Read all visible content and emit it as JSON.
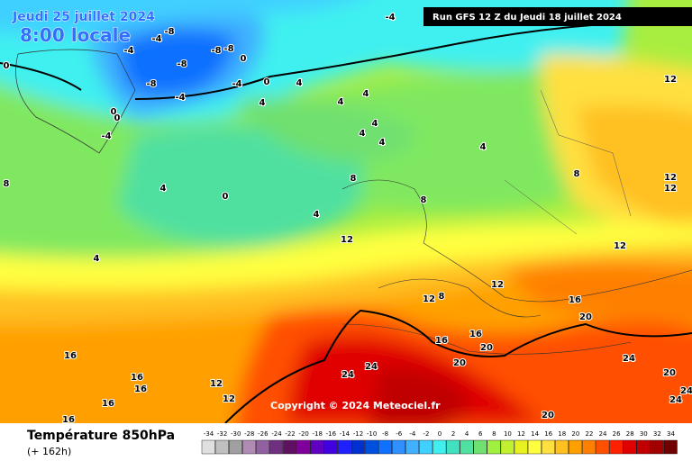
{
  "header": {
    "date": "Jeudi 25 juillet 2024",
    "time": "8:00 locale",
    "run": "Run GFS 12 Z du Jeudi 18 juillet 2024"
  },
  "copyright": "Copyright © 2024 Meteociel.fr",
  "footer": {
    "title": "Température 850hPa",
    "lead": "(+ 162h)"
  },
  "map": {
    "labels": [
      -4,
      -8,
      -4,
      -4,
      -8,
      -8,
      0,
      -8,
      -8,
      -4,
      -4,
      0,
      4,
      4,
      4,
      4,
      0,
      0,
      4,
      4,
      4,
      -4,
      4,
      4,
      0,
      4,
      4,
      8,
      8,
      8,
      8,
      12,
      12,
      12,
      12,
      12,
      12,
      8,
      12,
      16,
      20,
      16,
      16,
      20,
      20,
      24,
      24,
      24,
      20,
      24,
      24,
      16,
      16,
      16,
      16,
      16,
      12,
      12,
      20,
      0
    ]
  },
  "colorbar": {
    "ticks": [
      -34,
      -32,
      -30,
      -28,
      -26,
      -24,
      -22,
      -20,
      -18,
      -16,
      -14,
      -12,
      -10,
      -8,
      -6,
      -4,
      -2,
      0,
      2,
      4,
      6,
      8,
      10,
      12,
      14,
      16,
      18,
      20,
      22,
      24,
      26,
      28,
      30,
      32,
      34
    ],
    "colors": [
      "#e0e0e0",
      "#c0c0c0",
      "#a0a0a0",
      "#b08cb4",
      "#9060a0",
      "#703080",
      "#601060",
      "#80009c",
      "#6000c0",
      "#4000e0",
      "#2020ff",
      "#0030d0",
      "#0050e0",
      "#1070ff",
      "#3090ff",
      "#40b0ff",
      "#40d0ff",
      "#40f0f0",
      "#40e0c0",
      "#50e0a0",
      "#70e070",
      "#a0f040",
      "#c0f030",
      "#e8f020",
      "#ffff40",
      "#ffe040",
      "#ffc020",
      "#ffa000",
      "#ff8000",
      "#ff5000",
      "#ff2000",
      "#e00000",
      "#c00000",
      "#a00000",
      "#700000"
    ]
  }
}
